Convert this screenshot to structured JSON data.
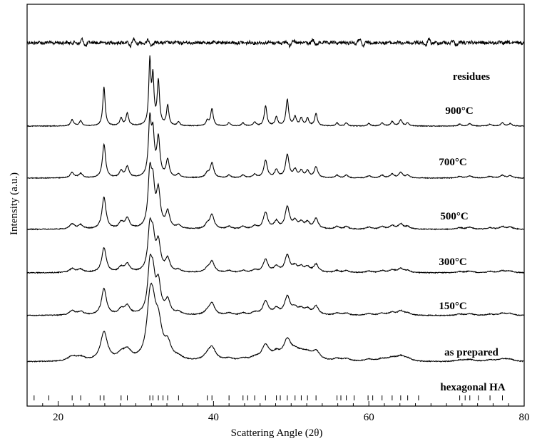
{
  "chart_data": {
    "type": "line",
    "title": "",
    "xlabel": "Scattering Angle (2θ)",
    "ylabel": "Intensity (a.u.)",
    "xlim": [
      16,
      80
    ],
    "xticks": [
      20,
      40,
      60,
      80
    ],
    "yticks": "none",
    "grid": false,
    "legend": "none",
    "peaks": [
      {
        "x": 21.8,
        "h": 0.1,
        "w": 0.22
      },
      {
        "x": 22.9,
        "h": 0.08,
        "w": 0.22
      },
      {
        "x": 25.9,
        "h": 0.62,
        "w": 0.18
      },
      {
        "x": 28.1,
        "h": 0.12,
        "w": 0.2
      },
      {
        "x": 28.9,
        "h": 0.2,
        "w": 0.2
      },
      {
        "x": 31.8,
        "h": 1.0,
        "w": 0.16
      },
      {
        "x": 32.2,
        "h": 0.72,
        "w": 0.16
      },
      {
        "x": 32.9,
        "h": 0.7,
        "w": 0.18
      },
      {
        "x": 34.1,
        "h": 0.32,
        "w": 0.18
      },
      {
        "x": 35.5,
        "h": 0.06,
        "w": 0.2
      },
      {
        "x": 39.2,
        "h": 0.08,
        "w": 0.2
      },
      {
        "x": 39.8,
        "h": 0.27,
        "w": 0.2
      },
      {
        "x": 42.0,
        "h": 0.05,
        "w": 0.2
      },
      {
        "x": 43.8,
        "h": 0.05,
        "w": 0.2
      },
      {
        "x": 45.3,
        "h": 0.06,
        "w": 0.2
      },
      {
        "x": 46.7,
        "h": 0.32,
        "w": 0.2
      },
      {
        "x": 48.1,
        "h": 0.14,
        "w": 0.2
      },
      {
        "x": 49.5,
        "h": 0.42,
        "w": 0.2
      },
      {
        "x": 50.5,
        "h": 0.14,
        "w": 0.2
      },
      {
        "x": 51.3,
        "h": 0.12,
        "w": 0.2
      },
      {
        "x": 52.1,
        "h": 0.12,
        "w": 0.2
      },
      {
        "x": 53.2,
        "h": 0.2,
        "w": 0.2
      },
      {
        "x": 55.9,
        "h": 0.05,
        "w": 0.2
      },
      {
        "x": 57.1,
        "h": 0.05,
        "w": 0.2
      },
      {
        "x": 60.0,
        "h": 0.04,
        "w": 0.22
      },
      {
        "x": 61.7,
        "h": 0.05,
        "w": 0.22
      },
      {
        "x": 63.0,
        "h": 0.07,
        "w": 0.22
      },
      {
        "x": 64.1,
        "h": 0.1,
        "w": 0.22
      },
      {
        "x": 65.0,
        "h": 0.05,
        "w": 0.22
      },
      {
        "x": 71.7,
        "h": 0.03,
        "w": 0.25
      },
      {
        "x": 73.0,
        "h": 0.04,
        "w": 0.25
      },
      {
        "x": 75.6,
        "h": 0.03,
        "w": 0.25
      },
      {
        "x": 77.2,
        "h": 0.05,
        "w": 0.25
      },
      {
        "x": 78.2,
        "h": 0.04,
        "w": 0.25
      }
    ],
    "series": [
      {
        "name": "residues"
      },
      {
        "name": "900°C"
      },
      {
        "name": "700°C"
      },
      {
        "name": "500°C"
      },
      {
        "name": "300°C"
      },
      {
        "name": "150°C"
      },
      {
        "name": "as prepared"
      }
    ],
    "reference": {
      "name": "hexagonal HA",
      "positions": [
        16.9,
        18.8,
        21.8,
        22.9,
        25.4,
        25.9,
        28.1,
        28.9,
        31.8,
        32.2,
        32.9,
        33.5,
        34.1,
        35.5,
        39.2,
        39.8,
        42.0,
        43.8,
        44.4,
        45.3,
        46.7,
        48.1,
        48.6,
        49.5,
        50.5,
        51.3,
        52.1,
        53.2,
        55.9,
        56.4,
        57.1,
        58.1,
        59.9,
        60.5,
        61.7,
        63.0,
        64.1,
        65.0,
        66.4,
        71.7,
        72.4,
        73.0,
        74.1,
        75.6,
        77.2
      ]
    }
  }
}
